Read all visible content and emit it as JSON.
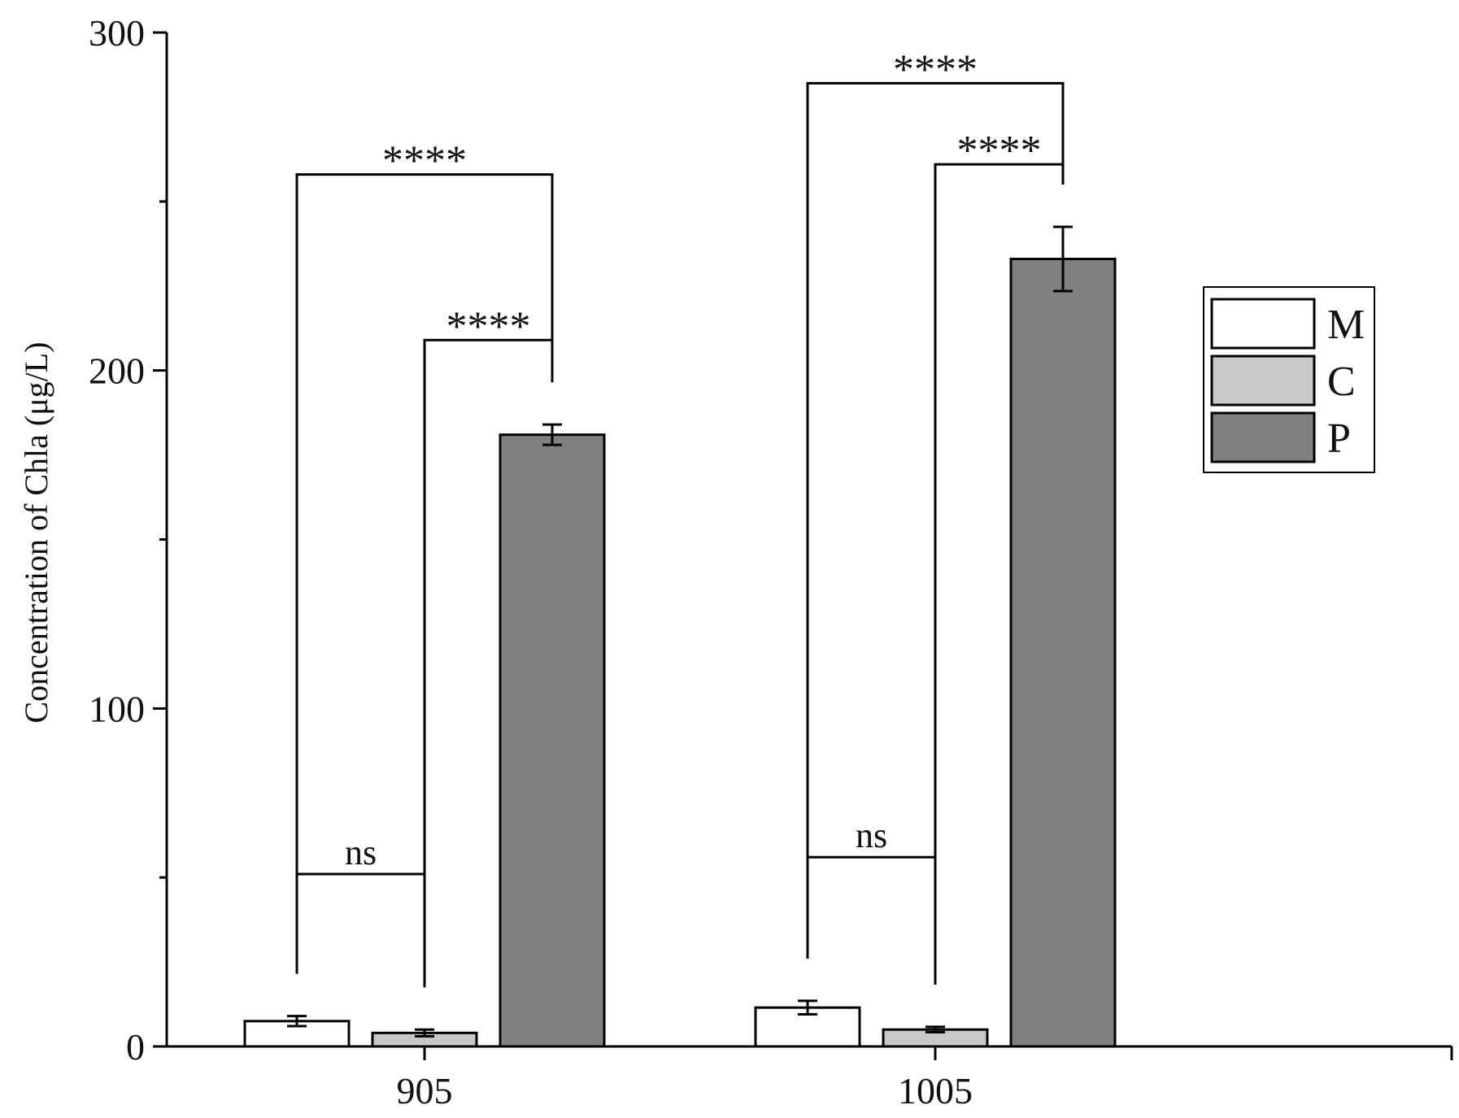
{
  "chart_data": {
    "type": "bar",
    "title": "",
    "xlabel": "",
    "ylabel": "Concentration of Chla (μg/L)",
    "ylim": [
      0,
      300
    ],
    "yticks": [
      0,
      100,
      200,
      300
    ],
    "grid": false,
    "legend_position": "right",
    "categories": [
      "905",
      "1005"
    ],
    "series": [
      {
        "name": "M",
        "color": "#ffffff",
        "values": [
          7.5,
          11.5
        ],
        "errors": [
          1.5,
          2.0
        ]
      },
      {
        "name": "C",
        "color": "#c8c8c8",
        "values": [
          4.0,
          5.0
        ],
        "errors": [
          1.0,
          0.8
        ]
      },
      {
        "name": "P",
        "color": "#808080",
        "values": [
          181,
          233
        ],
        "errors": [
          3.0,
          9.5
        ]
      }
    ],
    "significance": [
      {
        "category": 0,
        "from": "M",
        "to": "C",
        "label": "ns",
        "level": 51
      },
      {
        "category": 0,
        "from": "C",
        "to": "P",
        "label": "****",
        "level": 209
      },
      {
        "category": 0,
        "from": "M",
        "to": "P",
        "label": "****",
        "level": 258
      },
      {
        "category": 1,
        "from": "M",
        "to": "C",
        "label": "ns",
        "level": 56
      },
      {
        "category": 1,
        "from": "C",
        "to": "P",
        "label": "****",
        "level": 261
      },
      {
        "category": 1,
        "from": "M",
        "to": "P",
        "label": "****",
        "level": 285
      }
    ]
  }
}
